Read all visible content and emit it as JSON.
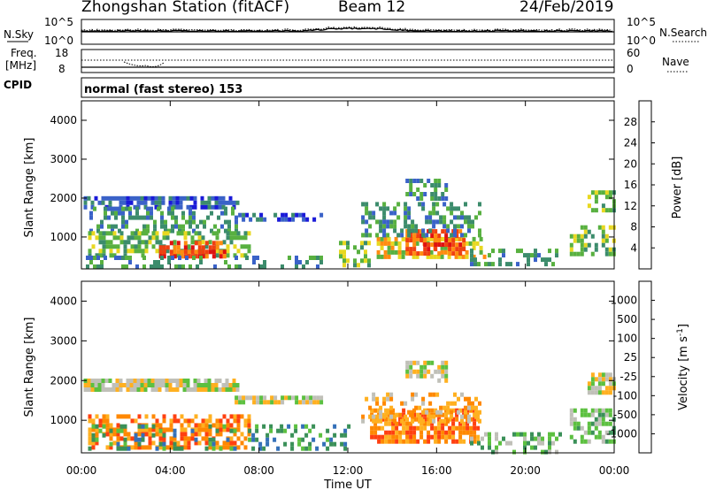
{
  "header": {
    "station": "Zhongshan Station (fitACF)",
    "beam": "Beam 12",
    "date": "24/Feb/2019"
  },
  "noise_panel": {
    "left_label": "N.Sky",
    "right_label": "N.Search",
    "left_ticks": [
      "10^5",
      "10^0"
    ],
    "right_ticks": [
      "10^5",
      "10^0"
    ]
  },
  "freq_panel": {
    "left_label_1": "Freq.",
    "left_label_2": "[MHz]",
    "right_label": "Nave",
    "left_ticks": [
      "18",
      "8"
    ],
    "right_ticks": [
      "60",
      "0"
    ]
  },
  "cpid": {
    "label": "CPID",
    "text": "normal (fast stereo) 153"
  },
  "chart_data": [
    {
      "type": "heatmap",
      "name": "power",
      "ylabel": "Slant Range [km]",
      "xlabel": "",
      "x_range_hours": [
        0,
        24
      ],
      "ylim": [
        180,
        4500
      ],
      "y_ticks": [
        "1000",
        "2000",
        "3000",
        "4000"
      ],
      "colorbar": {
        "label": "Power [dB]",
        "ticks": [
          "4",
          "8",
          "12",
          "16",
          "20",
          "24",
          "28"
        ],
        "colors": [
          "#1a1ad8",
          "#3a62c8",
          "#3c8c6c",
          "#58b040",
          "#e8d820",
          "#ff8c10",
          "#f04010",
          "#e01010"
        ]
      },
      "regions": [
        {
          "t0": 0.1,
          "t1": 7.0,
          "r0": 1780,
          "r1": 2050,
          "level": 1,
          "density": 0.7
        },
        {
          "t0": 6.9,
          "t1": 10.8,
          "r0": 1420,
          "r1": 1620,
          "level": 1,
          "density": 0.6
        },
        {
          "t0": 0.2,
          "t1": 7.0,
          "r0": 1200,
          "r1": 1780,
          "level": 2,
          "density": 0.45
        },
        {
          "t0": 0.3,
          "t1": 7.5,
          "r0": 520,
          "r1": 1150,
          "level": 3,
          "density": 0.55
        },
        {
          "t0": 3.5,
          "t1": 6.4,
          "r0": 550,
          "r1": 900,
          "level": 6,
          "density": 0.7
        },
        {
          "t0": 0.2,
          "t1": 10.8,
          "r0": 220,
          "r1": 520,
          "level": 2,
          "density": 0.35
        },
        {
          "t0": 13.3,
          "t1": 18.1,
          "r0": 500,
          "r1": 1000,
          "level": 4,
          "density": 0.55
        },
        {
          "t0": 14.6,
          "t1": 17.2,
          "r0": 560,
          "r1": 1200,
          "level": 6,
          "density": 0.75
        },
        {
          "t0": 12.6,
          "t1": 18.0,
          "r0": 1000,
          "r1": 1900,
          "level": 2,
          "density": 0.45
        },
        {
          "t0": 14.6,
          "t1": 16.5,
          "r0": 2000,
          "r1": 2500,
          "level": 2,
          "density": 0.55
        },
        {
          "t0": 11.6,
          "t1": 13.0,
          "r0": 250,
          "r1": 900,
          "level": 3,
          "density": 0.5
        },
        {
          "t0": 17.5,
          "t1": 21.5,
          "r0": 250,
          "r1": 700,
          "level": 2,
          "density": 0.4
        },
        {
          "t0": 22.0,
          "t1": 24.0,
          "r0": 600,
          "r1": 1300,
          "level": 3,
          "density": 0.55
        },
        {
          "t0": 22.8,
          "t1": 24.0,
          "r0": 1700,
          "r1": 2200,
          "level": 3,
          "density": 0.6
        }
      ]
    },
    {
      "type": "heatmap",
      "name": "velocity",
      "ylabel": "Slant Range [km]",
      "xlabel": "Time UT",
      "x_range_hours": [
        0,
        24
      ],
      "x_ticks": [
        "00:00",
        "04:00",
        "08:00",
        "12:00",
        "16:00",
        "20:00",
        "00:00"
      ],
      "ylim": [
        180,
        4500
      ],
      "y_ticks": [
        "1000",
        "2000",
        "3000",
        "4000"
      ],
      "colorbar": {
        "label": "Velocity [m s-1]",
        "ticks": [
          "1000",
          "500",
          "100",
          "25",
          "-25",
          "-100",
          "-500",
          "-1000"
        ],
        "colors": [
          "#1a38c8",
          "#3470b8",
          "#3a9058",
          "#5cc040",
          "#c0c0b8",
          "#ffb020",
          "#ff8800",
          "#ff4010",
          "#e01010"
        ]
      },
      "regions": [
        {
          "t0": 0.1,
          "t1": 7.0,
          "r0": 1780,
          "r1": 2050,
          "level": 4,
          "density": 0.85
        },
        {
          "t0": 6.9,
          "t1": 10.8,
          "r0": 1420,
          "r1": 1620,
          "level": 4,
          "density": 0.85
        },
        {
          "t0": 0.3,
          "t1": 7.5,
          "r0": 300,
          "r1": 1150,
          "level": 6,
          "density": 0.6
        },
        {
          "t0": 0.3,
          "t1": 7.0,
          "r0": 300,
          "r1": 900,
          "level": 2,
          "density": 0.2
        },
        {
          "t0": 7.5,
          "t1": 12.0,
          "r0": 250,
          "r1": 900,
          "level": 2,
          "density": 0.3
        },
        {
          "t0": 13.0,
          "t1": 17.8,
          "r0": 500,
          "r1": 1300,
          "level": 6,
          "density": 0.75
        },
        {
          "t0": 12.6,
          "t1": 18.0,
          "r0": 1000,
          "r1": 1700,
          "level": 5,
          "density": 0.4
        },
        {
          "t0": 14.6,
          "t1": 16.5,
          "r0": 2000,
          "r1": 2500,
          "level": 4,
          "density": 0.6
        },
        {
          "t0": 17.5,
          "t1": 21.5,
          "r0": 250,
          "r1": 700,
          "level": 3,
          "density": 0.35
        },
        {
          "t0": 22.0,
          "t1": 24.0,
          "r0": 500,
          "r1": 1300,
          "level": 3,
          "density": 0.5
        },
        {
          "t0": 22.8,
          "t1": 24.0,
          "r0": 1700,
          "r1": 2200,
          "level": 4,
          "density": 0.7
        }
      ]
    }
  ]
}
